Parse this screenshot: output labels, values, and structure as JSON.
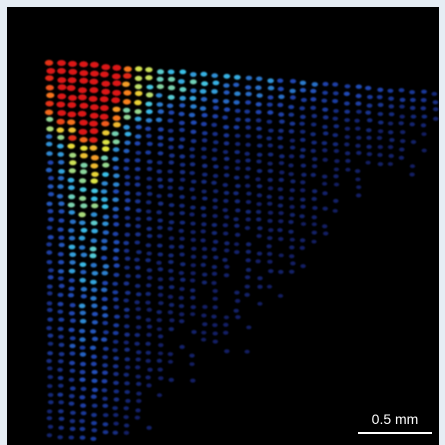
{
  "scale_bar": {
    "label": "0.5 mm"
  }
}
